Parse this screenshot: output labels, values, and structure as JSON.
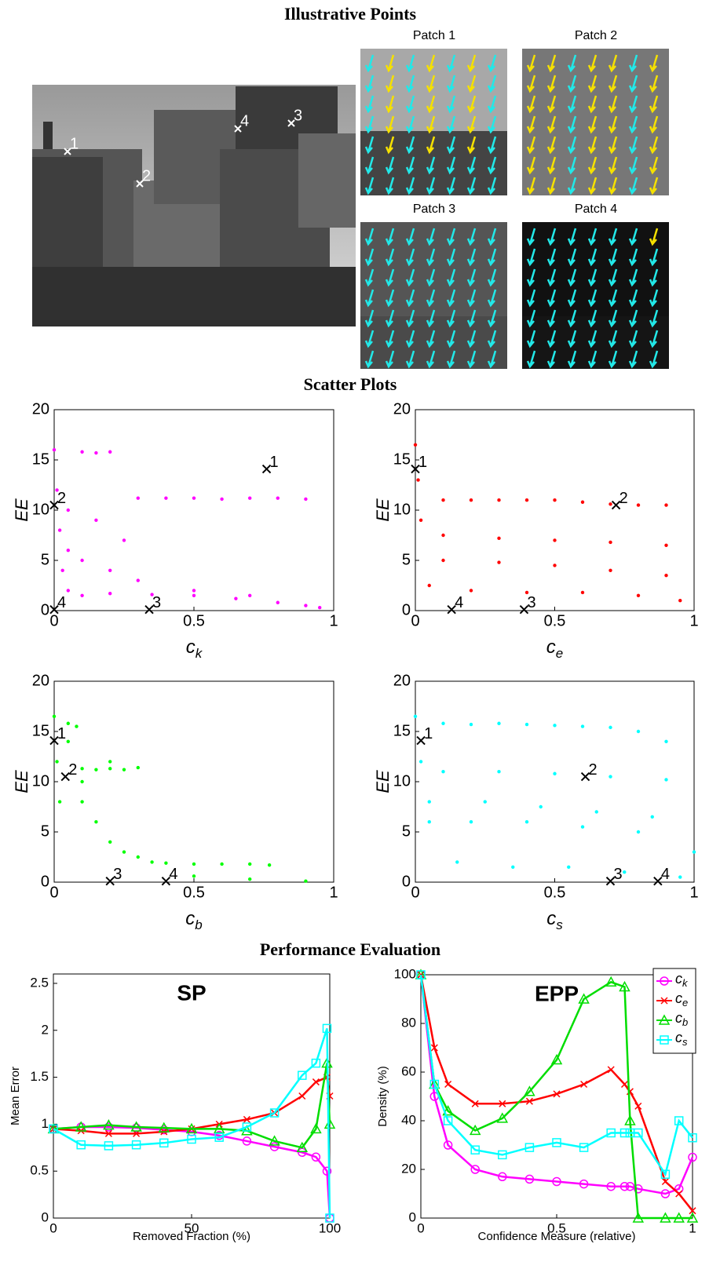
{
  "sections": {
    "illustrative": "Illustrative Points",
    "scatter": "Scatter Plots",
    "performance": "Performance Evaluation"
  },
  "image_points": [
    "1",
    "2",
    "3",
    "4"
  ],
  "patches": [
    "Patch 1",
    "Patch 2",
    "Patch 3",
    "Patch 4"
  ],
  "chart_data": [
    {
      "type": "scatter",
      "color": "#ff00ff",
      "xlabel": "c",
      "xlabel_sub": "k",
      "ylabel": "EE",
      "xlim": [
        0,
        1
      ],
      "ylim": [
        0,
        20
      ],
      "xticks": [
        0,
        0.5,
        1
      ],
      "yticks": [
        0,
        5,
        10,
        15,
        20
      ],
      "x": [
        0,
        0.01,
        0.02,
        0.03,
        0.05,
        0.1,
        0.15,
        0.2,
        0.3,
        0.4,
        0.5,
        0.6,
        0.7,
        0.8,
        0.9,
        0.05,
        0.1,
        0.2,
        0.3,
        0.5,
        0.7,
        0.9,
        0.1,
        0.2,
        0.35,
        0.5,
        0.65,
        0.8,
        0.95,
        0.05,
        0.15,
        0.25
      ],
      "values": [
        16,
        12,
        8,
        4,
        2,
        15.8,
        15.7,
        15.8,
        11.2,
        11.2,
        11.2,
        11.1,
        11.2,
        11.2,
        11.1,
        6,
        5,
        4,
        3,
        2,
        1.5,
        0.5,
        1.5,
        1.7,
        1.6,
        1.5,
        1.2,
        0.8,
        0.3,
        10,
        9,
        7
      ],
      "marked": {
        "labels": [
          "1",
          "2",
          "3",
          "4"
        ],
        "x": [
          0.76,
          0,
          0.34,
          0
        ],
        "values": [
          14.1,
          10.5,
          0.1,
          0.1
        ]
      }
    },
    {
      "type": "scatter",
      "color": "#ff0000",
      "xlabel": "c",
      "xlabel_sub": "e",
      "ylabel": "EE",
      "xlim": [
        0,
        1
      ],
      "ylim": [
        0,
        20
      ],
      "xticks": [
        0,
        0.5,
        1
      ],
      "yticks": [
        0,
        5,
        10,
        15,
        20
      ],
      "x": [
        0,
        0.01,
        0.02,
        0.1,
        0.2,
        0.3,
        0.4,
        0.5,
        0.6,
        0.7,
        0.8,
        0.9,
        0.1,
        0.3,
        0.5,
        0.7,
        0.9,
        0.1,
        0.3,
        0.5,
        0.7,
        0.9,
        0.05,
        0.2,
        0.4,
        0.6,
        0.8,
        0.95
      ],
      "values": [
        16.5,
        13,
        9,
        11,
        11,
        11,
        11,
        11,
        10.8,
        10.6,
        10.5,
        10.5,
        7.5,
        7.2,
        7,
        6.8,
        6.5,
        5,
        4.8,
        4.5,
        4,
        3.5,
        2.5,
        2,
        1.8,
        1.8,
        1.5,
        1
      ],
      "marked": {
        "labels": [
          "1",
          "2",
          "3",
          "4"
        ],
        "x": [
          0,
          0.72,
          0.39,
          0.13
        ],
        "values": [
          14.1,
          10.5,
          0.1,
          0.1
        ]
      }
    },
    {
      "type": "scatter",
      "color": "#00ff00",
      "xlabel": "c",
      "xlabel_sub": "b",
      "ylabel": "EE",
      "xlim": [
        0,
        1
      ],
      "ylim": [
        0,
        20
      ],
      "xticks": [
        0,
        0.5,
        1
      ],
      "yticks": [
        0,
        5,
        10,
        15,
        20
      ],
      "x": [
        0,
        0.01,
        0.02,
        0.05,
        0.08,
        0.1,
        0.15,
        0.2,
        0.25,
        0.3,
        0.1,
        0.15,
        0.2,
        0.25,
        0.3,
        0.35,
        0.4,
        0.5,
        0.6,
        0.7,
        0.77,
        0.5,
        0.7,
        0.9,
        0.05,
        0.1,
        0.2
      ],
      "values": [
        16.5,
        12,
        8,
        15.8,
        15.5,
        11.3,
        11.2,
        11.3,
        11.2,
        11.4,
        8,
        6,
        4,
        3,
        2.5,
        2,
        1.9,
        1.8,
        1.8,
        1.8,
        1.7,
        0.6,
        0.3,
        0.1,
        14,
        10,
        12
      ],
      "marked": {
        "labels": [
          "1",
          "2",
          "3",
          "4"
        ],
        "x": [
          0,
          0.04,
          0.2,
          0.4
        ],
        "values": [
          14.1,
          10.5,
          0.1,
          0.1
        ]
      }
    },
    {
      "type": "scatter",
      "color": "#00ffff",
      "xlabel": "c",
      "xlabel_sub": "s",
      "ylabel": "EE",
      "xlim": [
        0,
        1
      ],
      "ylim": [
        0,
        20
      ],
      "xticks": [
        0,
        0.5,
        1
      ],
      "yticks": [
        0,
        5,
        10,
        15,
        20
      ],
      "x": [
        0,
        0.02,
        0.05,
        0.1,
        0.2,
        0.3,
        0.4,
        0.5,
        0.6,
        0.7,
        0.8,
        0.9,
        0.1,
        0.3,
        0.5,
        0.7,
        0.9,
        0.05,
        0.2,
        0.4,
        0.6,
        0.8,
        1.0,
        0.15,
        0.35,
        0.55,
        0.75,
        0.95,
        0.25,
        0.45,
        0.65,
        0.85
      ],
      "values": [
        16.5,
        12,
        8,
        15.8,
        15.7,
        15.8,
        15.7,
        15.6,
        15.5,
        15.4,
        15,
        14,
        11,
        11,
        10.8,
        10.5,
        10.2,
        6,
        6,
        6,
        5.5,
        5,
        3,
        2,
        1.5,
        1.5,
        1,
        0.5,
        8,
        7.5,
        7,
        6.5
      ],
      "marked": {
        "labels": [
          "1",
          "2",
          "3",
          "4"
        ],
        "x": [
          0.02,
          0.61,
          0.7,
          0.87
        ],
        "values": [
          14.1,
          10.5,
          0.1,
          0.1
        ]
      }
    },
    {
      "type": "line",
      "title": "SP",
      "xlabel": "Removed Fraction (%)",
      "ylabel": "Mean Error",
      "xlim": [
        0,
        100
      ],
      "ylim": [
        0,
        2.6
      ],
      "xticks": [
        0,
        50,
        100
      ],
      "yticks": [
        0,
        0.5,
        1,
        1.5,
        2,
        2.5
      ],
      "x": [
        0,
        10,
        20,
        30,
        40,
        50,
        60,
        70,
        80,
        90,
        95,
        99,
        100
      ],
      "series": [
        {
          "color": "#ff00ff",
          "marker": "circle",
          "values": [
            0.95,
            0.97,
            0.97,
            0.96,
            0.94,
            0.92,
            0.88,
            0.82,
            0.76,
            0.7,
            0.65,
            0.5,
            0
          ]
        },
        {
          "color": "#ff0000",
          "marker": "x",
          "values": [
            0.95,
            0.93,
            0.9,
            0.9,
            0.92,
            0.95,
            1.0,
            1.05,
            1.12,
            1.3,
            1.45,
            1.5,
            1.3
          ]
        },
        {
          "color": "#00dd00",
          "marker": "triangle",
          "values": [
            0.95,
            0.97,
            0.99,
            0.97,
            0.96,
            0.95,
            0.95,
            0.93,
            0.82,
            0.75,
            0.95,
            1.65,
            1.0
          ]
        },
        {
          "color": "#00ffff",
          "marker": "square",
          "values": [
            0.95,
            0.78,
            0.77,
            0.78,
            0.8,
            0.84,
            0.86,
            0.97,
            1.12,
            1.52,
            1.65,
            2.02,
            0
          ]
        }
      ]
    },
    {
      "type": "line",
      "title": "EPP",
      "xlabel": "Confidence Measure (relative)",
      "ylabel": "Density (%)",
      "xlim": [
        0,
        1
      ],
      "ylim": [
        0,
        100
      ],
      "xticks": [
        0,
        0.5,
        1
      ],
      "yticks": [
        0,
        20,
        40,
        60,
        80,
        100
      ],
      "legend": "top-right",
      "x": [
        0,
        0.05,
        0.1,
        0.2,
        0.3,
        0.4,
        0.5,
        0.6,
        0.7,
        0.75,
        0.77,
        0.8,
        0.9,
        0.95,
        1
      ],
      "series": [
        {
          "name": "c",
          "sub": "k",
          "color": "#ff00ff",
          "marker": "circle",
          "values": [
            100,
            50,
            30,
            20,
            17,
            16,
            15,
            14,
            13,
            13,
            13,
            12,
            10,
            12,
            25
          ]
        },
        {
          "name": "c",
          "sub": "e",
          "color": "#ff0000",
          "marker": "x",
          "values": [
            100,
            70,
            55,
            47,
            47,
            48,
            51,
            55,
            61,
            55,
            52,
            46,
            15,
            10,
            3
          ]
        },
        {
          "name": "c",
          "sub": "b",
          "color": "#00dd00",
          "marker": "triangle",
          "values": [
            100,
            55,
            44,
            36,
            41,
            52,
            65,
            90,
            97,
            95,
            40,
            0,
            0,
            0,
            0
          ]
        },
        {
          "name": "c",
          "sub": "s",
          "color": "#00ffff",
          "marker": "square",
          "values": [
            100,
            55,
            40,
            28,
            26,
            29,
            31,
            29,
            35,
            35,
            35,
            35,
            18,
            40,
            33
          ]
        }
      ]
    }
  ]
}
